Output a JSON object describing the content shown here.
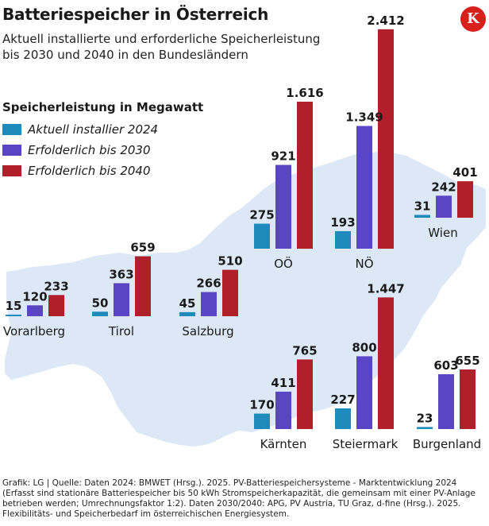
{
  "header": {
    "title": "Batteriespeicher in Österreich",
    "subtitle_line1": "Aktuell installierte und erforderliche Speicherleistung",
    "subtitle_line2": "bis 2030 und 2040 in den Bundesländern",
    "logo_letter": "K"
  },
  "legend": {
    "title": "Speicherleistung in Megawatt",
    "items": [
      {
        "label": "Aktuell installier 2024",
        "color": "#1f8bbd"
      },
      {
        "label": "Erfolderlich bis 2030",
        "color": "#5a45c4"
      },
      {
        "label": "Erfolderlich bis 2040",
        "color": "#b01f2a"
      }
    ]
  },
  "colors": {
    "map": "#dce8f5",
    "brand": "#d7201b"
  },
  "chart_data": {
    "type": "bar",
    "categories": [
      "Vorarlberg",
      "Tirol",
      "Salzburg",
      "OÖ",
      "NÖ",
      "Wien",
      "Kärnten",
      "Steiermark",
      "Burgenland"
    ],
    "series": [
      {
        "name": "Aktuell installier 2024",
        "values": [
          15,
          50,
          45,
          275,
          193,
          31,
          170,
          227,
          23
        ]
      },
      {
        "name": "Erfolderlich bis 2030",
        "values": [
          120,
          363,
          266,
          921,
          1349,
          242,
          411,
          800,
          603
        ]
      },
      {
        "name": "Erfolderlich bis 2040",
        "values": [
          233,
          659,
          510,
          1616,
          2412,
          401,
          765,
          1447,
          655
        ]
      }
    ],
    "value_labels": [
      [
        "15",
        "120",
        "233"
      ],
      [
        "50",
        "363",
        "659"
      ],
      [
        "45",
        "266",
        "510"
      ],
      [
        "275",
        "921",
        "1.616"
      ],
      [
        "193",
        "1.349",
        "2.412"
      ],
      [
        "31",
        "242",
        "401"
      ],
      [
        "170",
        "411",
        "765"
      ],
      [
        "227",
        "800",
        "1.447"
      ],
      [
        "23",
        "603",
        "655"
      ]
    ],
    "ylabel": "Speicherleistung in Megawatt"
  },
  "source": "Grafik: LG | Quelle: Daten 2024: BMWET (Hrsg.). 2025. PV-Batteriespeichersysteme - Marktentwicklung 2024 (Erfasst sind stationäre Batteriespeicher bis 50 kWh Stromspeicherkapazität, die gemeinsam mit einer PV-Anlage betrieben werden; Umrechnungsfaktor 1:2). Daten 2030/2040: APG, PV Austria, TU Graz, d-fine (Hrsg.). 2025. Flexibilitäts- und Speicherbedarf im österreichischen Energiesystem."
}
